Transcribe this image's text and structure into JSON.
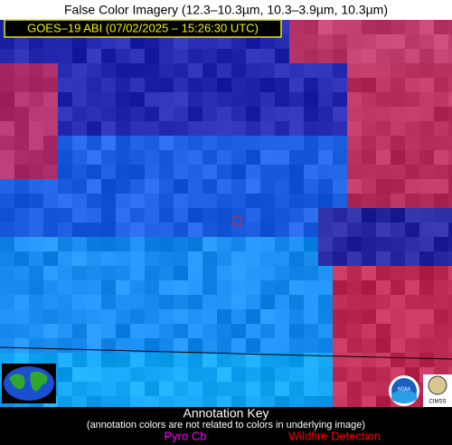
{
  "title": "False Color Imagery (12.3–10.3µm, 10.3–3.9µm, 10.3µm)",
  "timestamp_label": "GOES–19 ABI (07/02/2025 – 15:26:30 UTC)",
  "logos": {
    "noaa": "NOAA",
    "cimss": "CIMSS"
  },
  "annotation_key": {
    "title": "Annotation Key",
    "note": "(annotation colors are not related to colors in underlying image)",
    "items": [
      {
        "label": "Pyro Cb",
        "color": "#ff00ff"
      },
      {
        "label": "Wildfire Detection",
        "color": "#ff0000"
      }
    ]
  }
}
